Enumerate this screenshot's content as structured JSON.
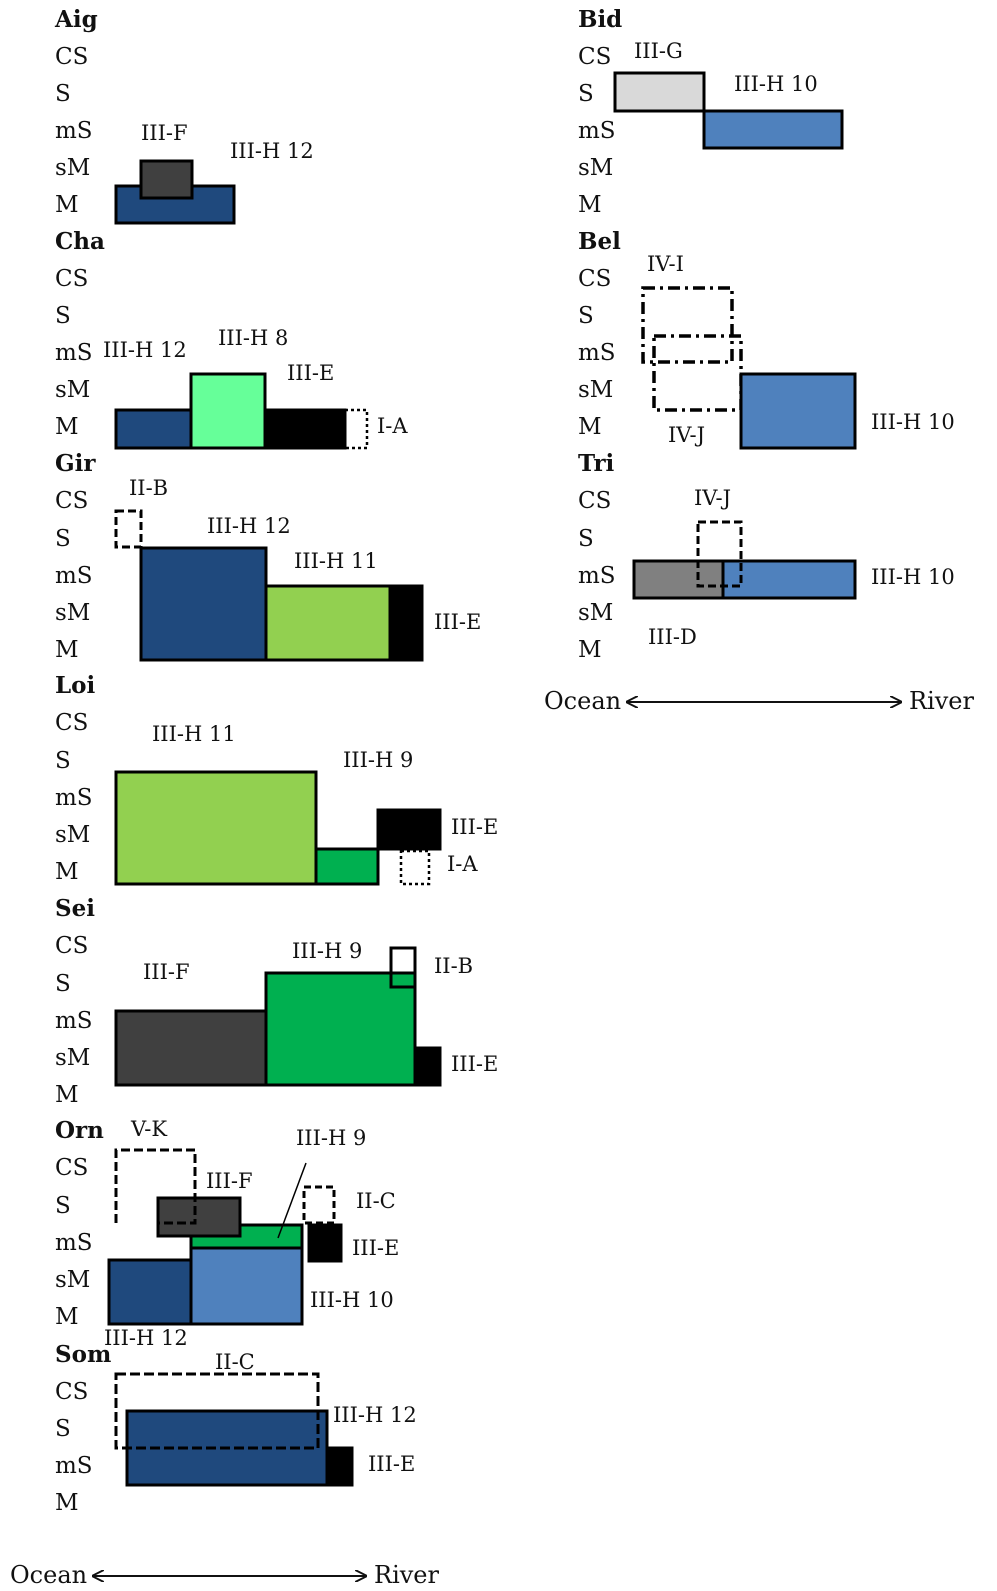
{
  "levels": {
    "CS": "CS",
    "S": "S",
    "mS": "mS",
    "sM": "sM",
    "M": "M"
  },
  "colors": {
    "navy": "#1f497d",
    "blue": "#4f81bd",
    "mint": "#66ff99",
    "lime": "#92d050",
    "green": "#00b050",
    "darkgrey": "#404040",
    "grey": "#808080",
    "lightgrey": "#d9d9d9",
    "black": "#000000"
  },
  "panels": {
    "aig": {
      "site": "Aig",
      "l1": "III-F",
      "l2": "III-H 12"
    },
    "cha": {
      "site": "Cha",
      "l1": "III-H 12",
      "l2": "III-H 8",
      "l3": "III-E",
      "l4": "I-A"
    },
    "gir": {
      "site": "Gir",
      "l1": "II-B",
      "l2": "III-H 12",
      "l3": "III-H 11",
      "l4": "III-E"
    },
    "loi": {
      "site": "Loi",
      "l1": "III-H 11",
      "l2": "III-H 9",
      "l3": "III-E",
      "l4": "I-A"
    },
    "sei": {
      "site": "Sei",
      "l1": "III-F",
      "l2": "III-H 9",
      "l3": "II-B",
      "l4": "III-E"
    },
    "orn": {
      "site": "Orn",
      "l1": "V-K",
      "l2": "III-F",
      "l3": "III-H 9",
      "l4": "II-C",
      "l5": "III-E",
      "l6": "III-H 10",
      "l7": "III-H 12"
    },
    "som": {
      "site": "Som",
      "l1": "II-C",
      "l2": "III-H 12",
      "l3": "III-E"
    },
    "bid": {
      "site": "Bid",
      "l1": "III-G",
      "l2": "III-H 10"
    },
    "bel": {
      "site": "Bel",
      "l1": "IV-I",
      "l2": "IV-J",
      "l3": "III-H 10"
    },
    "tri": {
      "site": "Tri",
      "l1": "IV-J",
      "l2": "III-H 10",
      "l3": "III-D"
    }
  },
  "axis": {
    "ocean": "Ocean",
    "river": "River"
  }
}
